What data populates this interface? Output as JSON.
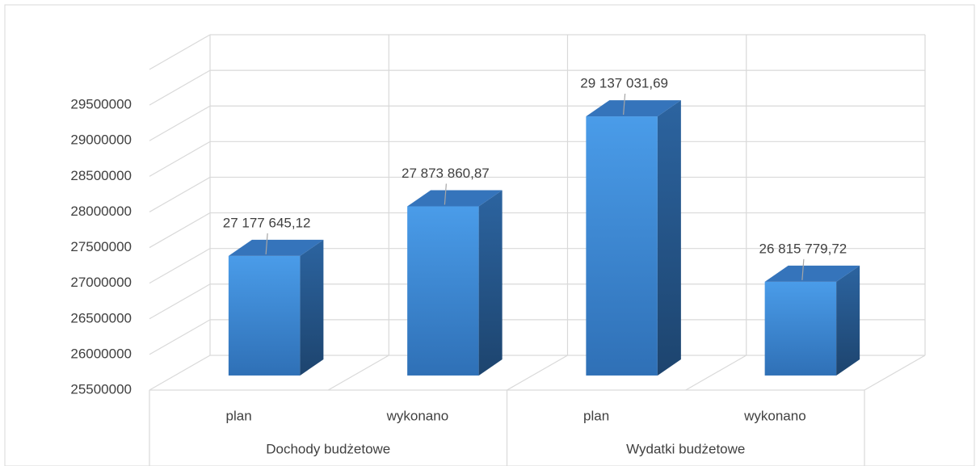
{
  "chart_data": {
    "type": "bar3d",
    "categories": [
      "plan",
      "wykonano",
      "plan",
      "wykonano"
    ],
    "groups": [
      "Dochody budżetowe",
      "Wydatki budżetowe"
    ],
    "values": [
      27177645.12,
      27873860.87,
      29137031.69,
      26815779.72
    ],
    "value_labels": [
      "27 177 645,12",
      "27 873 860,87",
      "29 137 031,69",
      "26 815 779,72"
    ],
    "color": "#3b82d0",
    "ylim": [
      25500000,
      30000000
    ],
    "yticks": [
      25500000,
      26000000,
      26500000,
      27000000,
      27500000,
      28000000,
      28500000,
      29000000,
      29500000
    ],
    "grid": true
  }
}
